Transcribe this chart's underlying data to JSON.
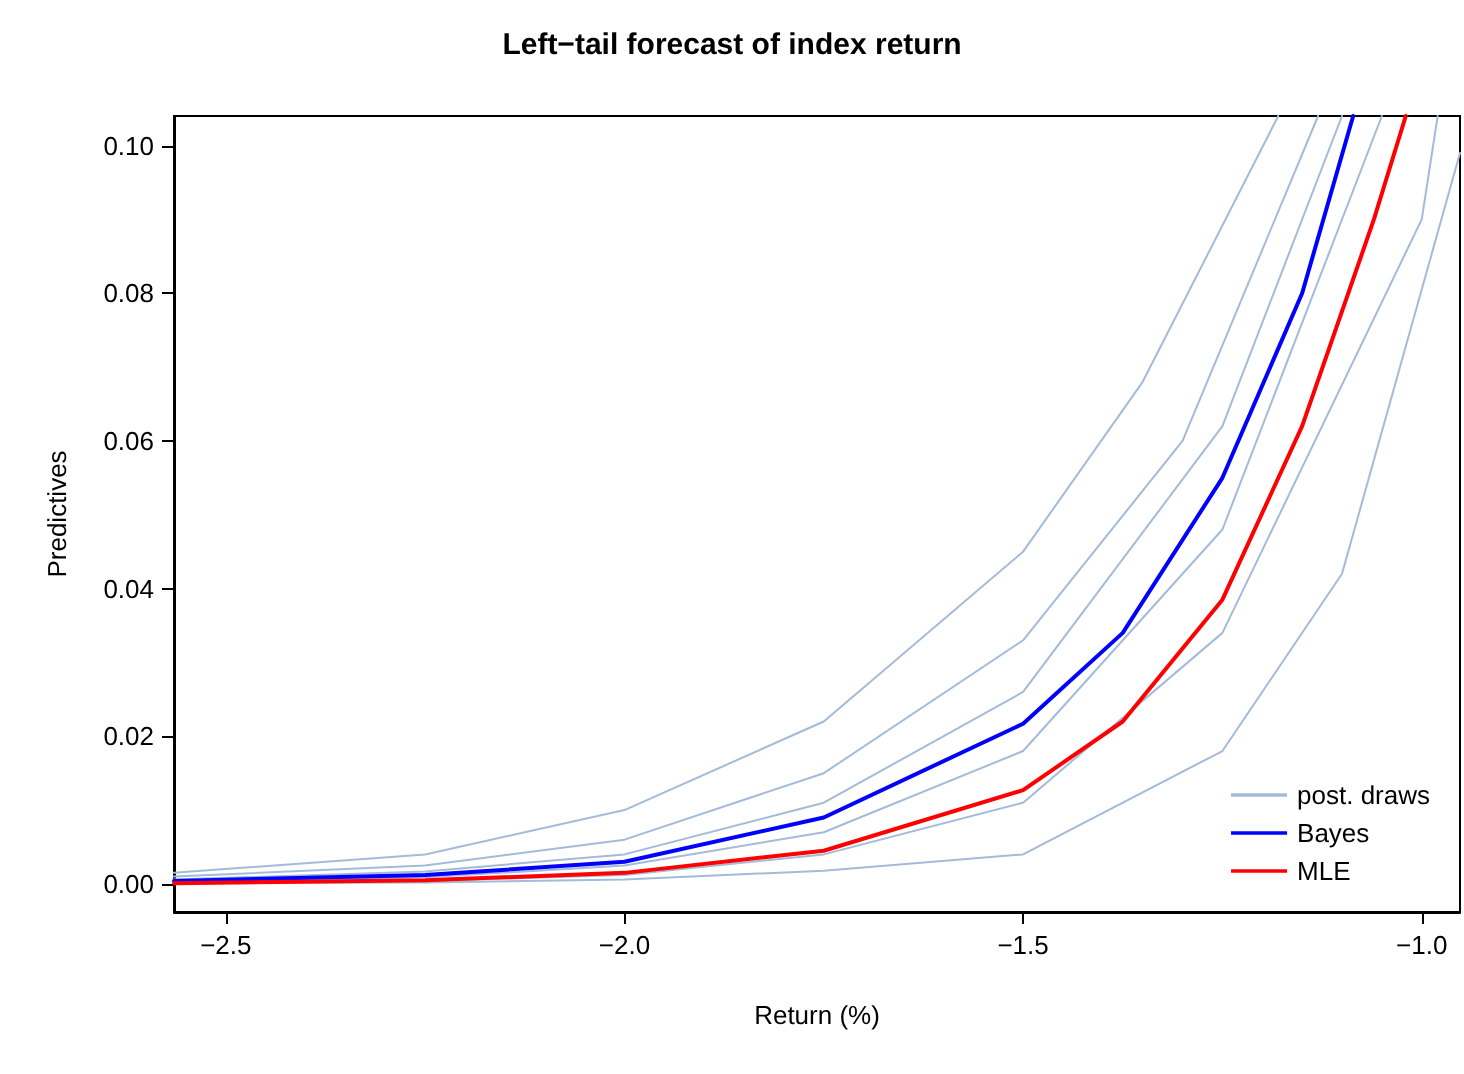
{
  "chart_data": {
    "type": "line",
    "title": "Left−tail forecast of index return",
    "xlabel": "Return (%)",
    "ylabel": "Predictives",
    "xlim": [
      -2.565,
      -0.952
    ],
    "ylim": [
      -0.0038,
      0.104
    ],
    "xticks": [
      {
        "value": -2.5,
        "label": "−2.5"
      },
      {
        "value": -2.0,
        "label": "−2.0"
      },
      {
        "value": -1.5,
        "label": "−1.5"
      },
      {
        "value": -1.0,
        "label": "−1.0"
      }
    ],
    "yticks": [
      {
        "value": 0,
        "label": "0.00"
      },
      {
        "value": 0.02,
        "label": "0.02"
      },
      {
        "value": 0.04,
        "label": "0.04"
      },
      {
        "value": 0.06,
        "label": "0.06"
      },
      {
        "value": 0.08,
        "label": "0.08"
      },
      {
        "value": 0.1,
        "label": "0.10"
      }
    ],
    "grid": false,
    "legend": "bottom right",
    "marker": "none",
    "line_style": "solid",
    "series": [
      {
        "name": "post. draws",
        "color": "#a3bbd9",
        "x": [
          -2.565,
          -2.25,
          -2,
          -1.75,
          -1.5,
          -1.35,
          -1.18
        ],
        "values": [
          0.0015,
          0.004,
          0.01,
          0.022,
          0.045,
          0.068,
          0.104
        ]
      },
      {
        "color": "#a3bbd9",
        "x": [
          -2.565,
          -2.25,
          -2,
          -1.75,
          -1.5,
          -1.3,
          -1.13
        ],
        "values": [
          0.001,
          0.0025,
          0.006,
          0.015,
          0.033,
          0.06,
          0.104
        ]
      },
      {
        "color": "#a3bbd9",
        "x": [
          -2.565,
          -2.25,
          -2,
          -1.75,
          -1.5,
          -1.25,
          -1.1
        ],
        "values": [
          0.0006,
          0.0017,
          0.004,
          0.011,
          0.026,
          0.062,
          0.104
        ]
      },
      {
        "color": "#a3bbd9",
        "x": [
          -2.565,
          -2.25,
          -2,
          -1.75,
          -1.5,
          -1.25,
          -1.05
        ],
        "values": [
          0.0003,
          0.0009,
          0.0025,
          0.007,
          0.018,
          0.048,
          0.104
        ]
      },
      {
        "color": "#a3bbd9",
        "x": [
          -2.565,
          -2.25,
          -2,
          -1.75,
          -1.5,
          -1.25,
          -1.0,
          -0.98
        ],
        "values": [
          0.0001,
          0.0004,
          0.0012,
          0.004,
          0.011,
          0.034,
          0.09,
          0.104
        ]
      },
      {
        "color": "#a3bbd9",
        "x": [
          -2.565,
          -2.25,
          -2,
          -1.75,
          -1.5,
          -1.25,
          -1.1,
          -0.952
        ],
        "values": [
          0.0001,
          0.0002,
          0.0006,
          0.0018,
          0.004,
          0.018,
          0.042,
          0.099
        ]
      },
      {
        "name": "Bayes",
        "color": "#0000ff",
        "x": [
          -2.565,
          -2.25,
          -2,
          -1.75,
          -1.5,
          -1.375,
          -1.25,
          -1.15,
          -1.086
        ],
        "values": [
          0.0004,
          0.0012,
          0.003,
          0.009,
          0.0217,
          0.034,
          0.055,
          0.08,
          0.104
        ]
      },
      {
        "name": "MLE",
        "color": "#ff0000",
        "x": [
          -2.565,
          -2.25,
          -2,
          -1.75,
          -1.5,
          -1.375,
          -1.25,
          -1.15,
          -1.06,
          -1.02
        ],
        "values": [
          0.0001,
          0.0005,
          0.0015,
          0.0045,
          0.0127,
          0.022,
          0.0385,
          0.062,
          0.09,
          0.104
        ]
      }
    ]
  }
}
